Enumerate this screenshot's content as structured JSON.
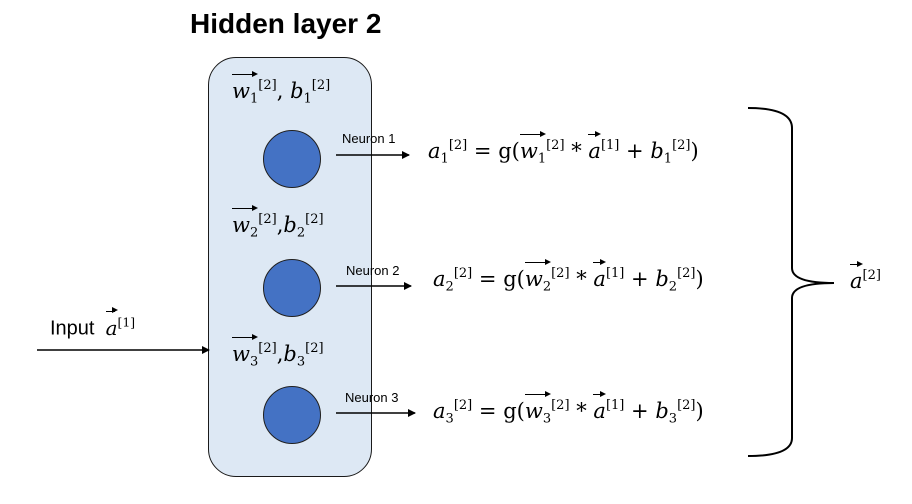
{
  "title": "Hidden layer 2",
  "input": {
    "label": "Input",
    "var": "a",
    "sup": "[1]"
  },
  "output": {
    "var": "a",
    "sup": "[2]"
  },
  "neurons": [
    {
      "label": "Neuron 1",
      "param_w": "w",
      "param_w_sub": "1",
      "param_sup": "[2]",
      "param_sep": ", ",
      "param_b": "b",
      "param_b_sub": "1",
      "eq_a": "a",
      "eq_sub": "1",
      "eq_sup": "[2]",
      "eq_mid": " = g(",
      "eq_star": " * ",
      "eq_plus": " + ",
      "eq_end": ")",
      "eq_in_sup": "[1]"
    },
    {
      "label": "Neuron 2",
      "param_w": "w",
      "param_w_sub": "2",
      "param_sup": "[2]",
      "param_sep": ",",
      "param_b": "b",
      "param_b_sub": "2",
      "eq_a": "a",
      "eq_sub": "2",
      "eq_sup": "[2]",
      "eq_mid": " = g(",
      "eq_star": " * ",
      "eq_plus": " + ",
      "eq_end": ")",
      "eq_in_sup": "[1]"
    },
    {
      "label": "Neuron 3",
      "param_w": "w",
      "param_w_sub": "3",
      "param_sup": "[2]",
      "param_sep": ",",
      "param_b": "b",
      "param_b_sub": "3",
      "eq_a": "a",
      "eq_sub": "3",
      "eq_sup": "[2]",
      "eq_mid": " = g(",
      "eq_star": " * ",
      "eq_plus": " + ",
      "eq_end": ")",
      "eq_in_sup": "[1]"
    }
  ]
}
